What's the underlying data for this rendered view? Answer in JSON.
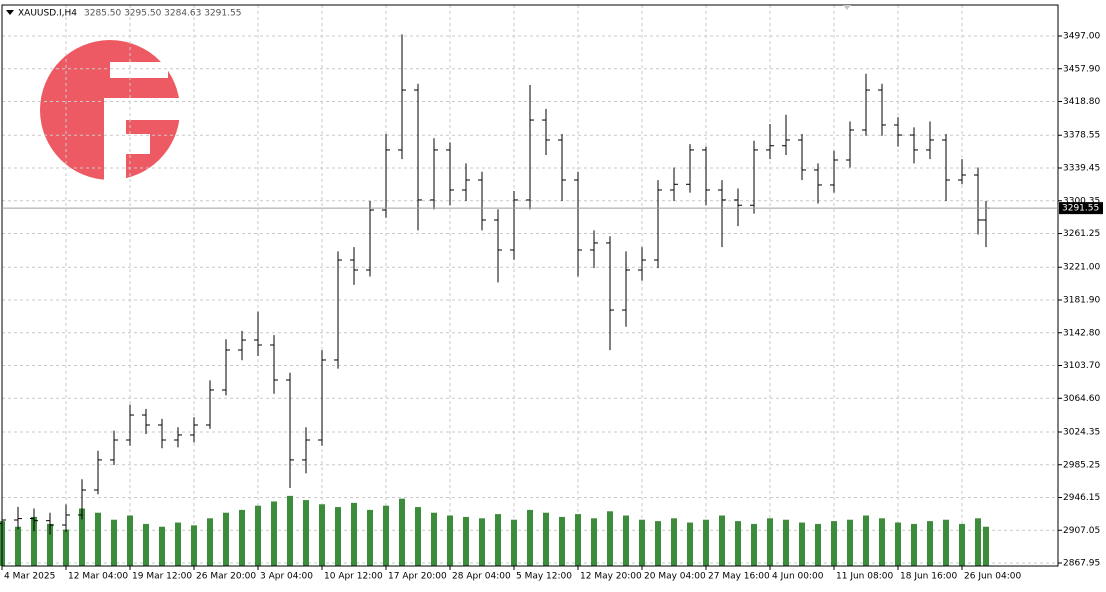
{
  "chart_data": {
    "type": "ohlc",
    "symbol": "XAUUSD.I,H4",
    "last_bar_text": "3285.50 3295.50 3284.63 3291.55",
    "current_price": {
      "value": 3291.55,
      "label": "3291.55"
    },
    "xlim": [
      0,
      528
    ],
    "ylim": [
      2864.4,
      3534.0
    ],
    "vlim": [
      0,
      4000
    ],
    "grid": true,
    "color": "#000000",
    "volume_color": "#3c8c3c",
    "yticks": [
      {
        "value": 3497.0,
        "label": "3497.00"
      },
      {
        "value": 3457.9,
        "label": "3457.90"
      },
      {
        "value": 3418.8,
        "label": "3418.80"
      },
      {
        "value": 3378.55,
        "label": "3378.55"
      },
      {
        "value": 3339.45,
        "label": "3339.45"
      },
      {
        "value": 3300.35,
        "label": "3300.35"
      },
      {
        "value": 3261.25,
        "label": "3261.25"
      },
      {
        "value": 3221.0,
        "label": "3221.00"
      },
      {
        "value": 3181.9,
        "label": "3181.90"
      },
      {
        "value": 3142.8,
        "label": "3142.80"
      },
      {
        "value": 3103.7,
        "label": "3103.70"
      },
      {
        "value": 3064.6,
        "label": "3064.60"
      },
      {
        "value": 3024.35,
        "label": "3024.35"
      },
      {
        "value": 2985.25,
        "label": "2985.25"
      },
      {
        "value": 2946.15,
        "label": "2946.15"
      },
      {
        "value": 2907.05,
        "label": "2907.05"
      },
      {
        "value": 2867.95,
        "label": "2867.95"
      }
    ],
    "xticks": [
      {
        "value": 0,
        "label": "4 Mar 2025"
      },
      {
        "value": 32,
        "label": "12 Mar 04:00"
      },
      {
        "value": 64,
        "label": "19 Mar 12:00"
      },
      {
        "value": 96,
        "label": "26 Mar 20:00"
      },
      {
        "value": 128,
        "label": "3 Apr 04:00"
      },
      {
        "value": 160,
        "label": "10 Apr 12:00"
      },
      {
        "value": 192,
        "label": "17 Apr 20:00"
      },
      {
        "value": 224,
        "label": "28 Apr 04:00"
      },
      {
        "value": 256,
        "label": "5 May 12:00"
      },
      {
        "value": 288,
        "label": "12 May 20:00"
      },
      {
        "value": 320,
        "label": "20 May 04:00"
      },
      {
        "value": 352,
        "label": "27 May 16:00"
      },
      {
        "value": 384,
        "label": "4 Jun 00:00"
      },
      {
        "value": 416,
        "label": "11 Jun 08:00"
      },
      {
        "value": 448,
        "label": "18 Jun 16:00"
      },
      {
        "value": 480,
        "label": "26 Jun 04:00"
      }
    ],
    "x": [
      0,
      8,
      16,
      24,
      32,
      40,
      48,
      56,
      64,
      72,
      80,
      88,
      96,
      104,
      112,
      120,
      128,
      136,
      144,
      152,
      160,
      168,
      176,
      184,
      192,
      200,
      208,
      216,
      224,
      232,
      240,
      248,
      256,
      264,
      272,
      280,
      288,
      296,
      304,
      312,
      320,
      328,
      336,
      344,
      352,
      360,
      368,
      376,
      384,
      392,
      400,
      408,
      416,
      424,
      432,
      440,
      448,
      456,
      464,
      472,
      480,
      488,
      492
    ],
    "open": [
      2915.0,
      2919.3,
      2921.0,
      2918.5,
      2913.3,
      2925.3,
      2955.1,
      2991.0,
      3014.8,
      3044.6,
      3032.7,
      3014.8,
      3020.8,
      3032.7,
      3074.5,
      3122.2,
      3134.1,
      3128.2,
      3086.4,
      2991.0,
      3014.8,
      3110.3,
      3229.6,
      3217.7,
      3289.3,
      3361.0,
      3432.5,
      3301.3,
      3361.0,
      3313.2,
      3325.1,
      3277.4,
      3241.6,
      3301.3,
      3396.7,
      3372.9,
      3325.1,
      3241.6,
      3250.0,
      3169.9,
      3217.7,
      3229.6,
      3313.2,
      3320.0,
      3361.0,
      3313.2,
      3301.3,
      3295.0,
      3361.0,
      3366.0,
      3372.9,
      3337.1,
      3319.2,
      3349.0,
      3384.8,
      3432.5,
      3390.8,
      3378.8,
      3361.0,
      3372.9,
      3325.1,
      3331.1,
      3277.4
    ],
    "high": [
      2932.0,
      2935.0,
      2933.0,
      2928.0,
      2938.0,
      2968.0,
      3002.0,
      3026.0,
      3057.0,
      3052.0,
      3040.0,
      3030.0,
      3042.0,
      3086.0,
      3135.0,
      3145.0,
      3168.0,
      3140.0,
      3095.0,
      3030.0,
      3122.0,
      3240.0,
      3245.0,
      3300.0,
      3380.0,
      3499.0,
      3440.0,
      3375.0,
      3370.0,
      3345.0,
      3335.0,
      3290.0,
      3312.0,
      3438.5,
      3410.0,
      3380.0,
      3335.0,
      3265.0,
      3258.0,
      3240.0,
      3245.0,
      3325.0,
      3340.0,
      3368.0,
      3365.0,
      3325.0,
      3315.0,
      3372.0,
      3392.0,
      3403.0,
      3380.0,
      3345.0,
      3360.0,
      3395.0,
      3452.0,
      3440.0,
      3400.0,
      3388.0,
      3395.0,
      3380.0,
      3350.0,
      3340.0,
      3300.0
    ],
    "low": [
      2905.0,
      2908.0,
      2906.0,
      2902.0,
      2905.0,
      2920.0,
      2950.0,
      2985.0,
      3008.0,
      3022.0,
      3005.0,
      3006.0,
      3012.0,
      3028.0,
      3068.0,
      3110.0,
      3115.0,
      3070.0,
      2957.5,
      2975.0,
      3008.0,
      3100.0,
      3200.0,
      3210.0,
      3280.0,
      3350.0,
      3265.0,
      3290.0,
      3295.0,
      3300.0,
      3265.0,
      3203.0,
      3230.0,
      3290.0,
      3355.0,
      3300.0,
      3210.0,
      3220.0,
      3122.0,
      3150.0,
      3205.0,
      3220.0,
      3300.0,
      3310.0,
      3295.0,
      3245.0,
      3270.0,
      3285.0,
      3350.0,
      3355.0,
      3325.0,
      3297.0,
      3310.0,
      3340.0,
      3378.0,
      3378.0,
      3365.0,
      3345.0,
      3350.0,
      3300.0,
      3320.0,
      3260.0,
      3245.0
    ],
    "close": [
      2919.3,
      2921.0,
      2918.5,
      2913.3,
      2925.3,
      2955.1,
      2991.0,
      3014.8,
      3044.6,
      3032.7,
      3014.8,
      3020.8,
      3032.7,
      3074.5,
      3122.2,
      3134.1,
      3128.2,
      3086.4,
      2991.0,
      3014.8,
      3110.3,
      3229.6,
      3217.7,
      3289.3,
      3361.0,
      3432.5,
      3301.3,
      3361.0,
      3313.2,
      3325.1,
      3277.4,
      3241.6,
      3301.3,
      3396.7,
      3372.9,
      3325.1,
      3241.6,
      3250.0,
      3169.9,
      3217.7,
      3229.6,
      3313.2,
      3320.0,
      3361.0,
      3313.2,
      3301.3,
      3295.0,
      3361.0,
      3366.0,
      3372.9,
      3337.1,
      3319.2,
      3349.0,
      3384.8,
      3432.5,
      3390.8,
      3378.8,
      3361.0,
      3372.9,
      3325.1,
      3331.1,
      3277.4,
      3291.55
    ],
    "volume": [
      320,
      280,
      350,
      300,
      260,
      410,
      380,
      330,
      360,
      300,
      280,
      310,
      290,
      340,
      380,
      400,
      430,
      460,
      500,
      470,
      440,
      420,
      450,
      400,
      430,
      480,
      420,
      380,
      360,
      350,
      340,
      370,
      330,
      400,
      380,
      350,
      370,
      340,
      390,
      360,
      330,
      320,
      340,
      310,
      330,
      360,
      320,
      300,
      340,
      330,
      310,
      300,
      320,
      330,
      360,
      340,
      310,
      300,
      320,
      330,
      300,
      340,
      280
    ]
  }
}
